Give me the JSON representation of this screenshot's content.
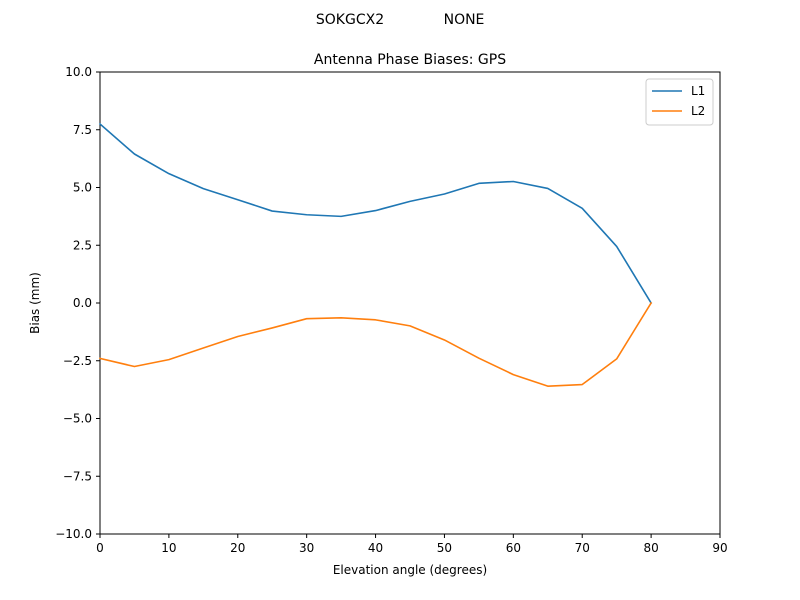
{
  "suptitle": {
    "station": "SOKGCX2",
    "radome": "NONE"
  },
  "chart_data": {
    "type": "line",
    "title": "Antenna Phase Biases: GPS",
    "xlabel": "Elevation angle (degrees)",
    "ylabel": "Bias (mm)",
    "xlim": [
      0,
      90
    ],
    "ylim": [
      -10,
      10
    ],
    "xticks": [
      0,
      10,
      20,
      30,
      40,
      50,
      60,
      70,
      80,
      90
    ],
    "xtick_labels": [
      "0",
      "10",
      "20",
      "30",
      "40",
      "50",
      "60",
      "70",
      "80",
      "90"
    ],
    "yticks": [
      10,
      7.5,
      5,
      2.5,
      0,
      -2.5,
      -5,
      -7.5,
      -10
    ],
    "ytick_labels": [
      "10.0",
      "7.5",
      "5.0",
      "2.5",
      "0.0",
      "−2.5",
      "−5.0",
      "−7.5",
      "−10.0"
    ],
    "x": [
      0,
      5,
      10,
      15,
      20,
      25,
      30,
      35,
      40,
      45,
      50,
      55,
      60,
      65,
      70,
      75,
      80
    ],
    "series": [
      {
        "name": "L1",
        "color": "#1f77b4",
        "values": [
          7.75,
          6.45,
          5.6,
          4.95,
          4.47,
          3.98,
          3.82,
          3.75,
          4.0,
          4.4,
          4.72,
          5.18,
          5.26,
          4.96,
          4.1,
          2.45,
          0.0
        ]
      },
      {
        "name": "L2",
        "color": "#ff7f0e",
        "values": [
          -2.4,
          -2.75,
          -2.45,
          -1.95,
          -1.45,
          -1.08,
          -0.68,
          -0.64,
          -0.73,
          -0.99,
          -1.6,
          -2.39,
          -3.1,
          -3.6,
          -3.53,
          -2.42,
          0.0
        ]
      }
    ],
    "legend": {
      "placement": "top-right"
    },
    "grid": false
  }
}
